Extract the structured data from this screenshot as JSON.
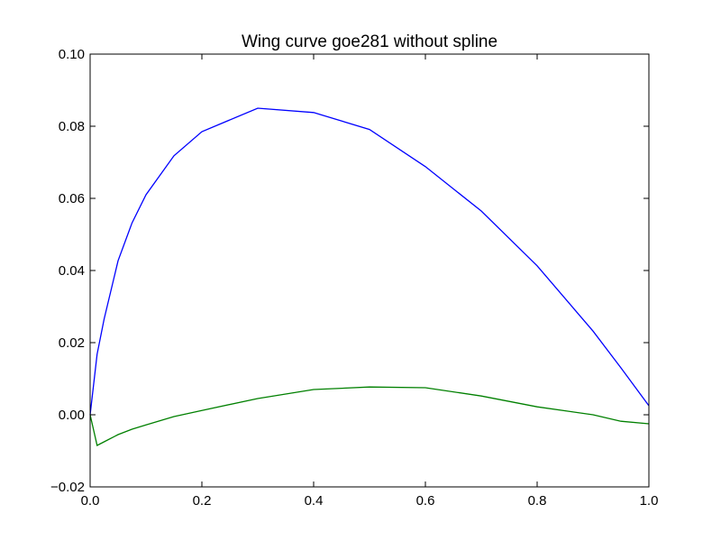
{
  "chart_data": {
    "type": "line",
    "title": "Wing curve goe281 without spline",
    "xlabel": "",
    "ylabel": "",
    "xlim": [
      0.0,
      1.0
    ],
    "ylim": [
      -0.02,
      0.1
    ],
    "grid": false,
    "x_ticks": [
      "0.0",
      "0.2",
      "0.4",
      "0.6",
      "0.8",
      "1.0"
    ],
    "y_ticks": [
      "−0.02",
      "0.00",
      "0.02",
      "0.04",
      "0.06",
      "0.08",
      "0.10"
    ],
    "series": [
      {
        "color": "#0000ff",
        "x": [
          0.0,
          0.0125,
          0.025,
          0.05,
          0.075,
          0.1,
          0.15,
          0.2,
          0.3,
          0.4,
          0.5,
          0.6,
          0.7,
          0.8,
          0.9,
          0.95,
          1.0
        ],
        "y": [
          0.0,
          0.0168,
          0.0265,
          0.0427,
          0.0532,
          0.061,
          0.0718,
          0.0785,
          0.085,
          0.0838,
          0.0791,
          0.0688,
          0.0565,
          0.0413,
          0.0232,
          0.013,
          0.0025
        ]
      },
      {
        "color": "#008000",
        "x": [
          0.0,
          0.0125,
          0.025,
          0.05,
          0.075,
          0.1,
          0.15,
          0.2,
          0.3,
          0.4,
          0.5,
          0.6,
          0.7,
          0.8,
          0.9,
          0.95,
          1.0
        ],
        "y": [
          0.0,
          -0.0085,
          -0.0075,
          -0.0055,
          -0.004,
          -0.0028,
          -0.0005,
          0.0012,
          0.0045,
          0.007,
          0.0077,
          0.0075,
          0.0052,
          0.0022,
          0.0,
          -0.0018,
          -0.0025
        ]
      }
    ]
  }
}
